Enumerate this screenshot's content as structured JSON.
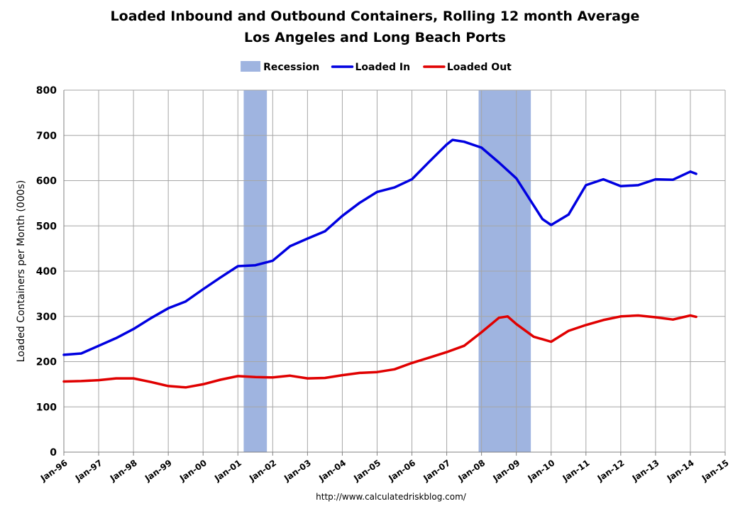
{
  "chart_data": {
    "type": "line",
    "title": "Loaded Inbound and Outbound Containers, Rolling 12 month Average",
    "subtitle": "Los Angeles and Long Beach Ports",
    "xlabel": "",
    "ylabel": "Loaded Containers per Month (000s)",
    "ylim": [
      0,
      800
    ],
    "yticks": [
      0,
      100,
      200,
      300,
      400,
      500,
      600,
      700,
      800
    ],
    "xlim": [
      "1996-01",
      "2015-01"
    ],
    "xticks": [
      "Jan-96",
      "Jan-97",
      "Jan-98",
      "Jan-99",
      "Jan-00",
      "Jan-01",
      "Jan-02",
      "Jan-03",
      "Jan-04",
      "Jan-05",
      "Jan-06",
      "Jan-07",
      "Jan-08",
      "Jan-09",
      "Jan-10",
      "Jan-11",
      "Jan-12",
      "Jan-13",
      "Jan-14",
      "Jan-15"
    ],
    "grid": true,
    "legend_position": "top",
    "recessions": [
      {
        "start": "2001-03",
        "end": "2001-11"
      },
      {
        "start": "2007-12",
        "end": "2009-06"
      }
    ],
    "legend": [
      {
        "label": "Recession",
        "kind": "band",
        "color": "#9FB4E0"
      },
      {
        "label": "Loaded In",
        "kind": "line",
        "color": "#0000E0"
      },
      {
        "label": "Loaded Out",
        "kind": "line",
        "color": "#E00000"
      }
    ],
    "series": [
      {
        "name": "Loaded In",
        "color": "#0000E0",
        "points": [
          [
            "1996-01",
            215
          ],
          [
            "1996-07",
            218
          ],
          [
            "1997-01",
            235
          ],
          [
            "1997-07",
            252
          ],
          [
            "1998-01",
            272
          ],
          [
            "1998-07",
            296
          ],
          [
            "1999-01",
            318
          ],
          [
            "1999-07",
            333
          ],
          [
            "2000-01",
            360
          ],
          [
            "2000-07",
            386
          ],
          [
            "2001-01",
            411
          ],
          [
            "2001-07",
            413
          ],
          [
            "2002-01",
            423
          ],
          [
            "2002-07",
            455
          ],
          [
            "2003-01",
            472
          ],
          [
            "2003-07",
            488
          ],
          [
            "2004-01",
            522
          ],
          [
            "2004-07",
            551
          ],
          [
            "2005-01",
            575
          ],
          [
            "2005-07",
            585
          ],
          [
            "2006-01",
            603
          ],
          [
            "2006-07",
            642
          ],
          [
            "2007-01",
            680
          ],
          [
            "2007-03",
            690
          ],
          [
            "2007-07",
            686
          ],
          [
            "2008-01",
            673
          ],
          [
            "2008-07",
            640
          ],
          [
            "2009-01",
            605
          ],
          [
            "2009-07",
            545
          ],
          [
            "2009-10",
            515
          ],
          [
            "2010-01",
            502
          ],
          [
            "2010-07",
            525
          ],
          [
            "2011-01",
            590
          ],
          [
            "2011-07",
            603
          ],
          [
            "2012-01",
            588
          ],
          [
            "2012-07",
            590
          ],
          [
            "2013-01",
            603
          ],
          [
            "2013-07",
            602
          ],
          [
            "2014-01",
            620
          ],
          [
            "2014-03",
            615
          ]
        ]
      },
      {
        "name": "Loaded Out",
        "color": "#E00000",
        "points": [
          [
            "1996-01",
            156
          ],
          [
            "1996-07",
            157
          ],
          [
            "1997-01",
            159
          ],
          [
            "1997-07",
            163
          ],
          [
            "1998-01",
            163
          ],
          [
            "1998-07",
            155
          ],
          [
            "1999-01",
            146
          ],
          [
            "1999-07",
            143
          ],
          [
            "2000-01",
            150
          ],
          [
            "2000-07",
            160
          ],
          [
            "2001-01",
            168
          ],
          [
            "2001-07",
            166
          ],
          [
            "2002-01",
            165
          ],
          [
            "2002-07",
            169
          ],
          [
            "2003-01",
            163
          ],
          [
            "2003-07",
            164
          ],
          [
            "2004-01",
            170
          ],
          [
            "2004-07",
            175
          ],
          [
            "2005-01",
            177
          ],
          [
            "2005-07",
            183
          ],
          [
            "2006-01",
            197
          ],
          [
            "2006-07",
            209
          ],
          [
            "2007-01",
            221
          ],
          [
            "2007-07",
            235
          ],
          [
            "2008-01",
            265
          ],
          [
            "2008-07",
            297
          ],
          [
            "2008-10",
            300
          ],
          [
            "2009-01",
            283
          ],
          [
            "2009-07",
            255
          ],
          [
            "2010-01",
            244
          ],
          [
            "2010-07",
            268
          ],
          [
            "2011-01",
            281
          ],
          [
            "2011-07",
            292
          ],
          [
            "2012-01",
            300
          ],
          [
            "2012-07",
            302
          ],
          [
            "2013-01",
            298
          ],
          [
            "2013-07",
            293
          ],
          [
            "2014-01",
            302
          ],
          [
            "2014-03",
            299
          ]
        ]
      }
    ],
    "source_note": "http://www.calculatedriskblog.com/"
  }
}
